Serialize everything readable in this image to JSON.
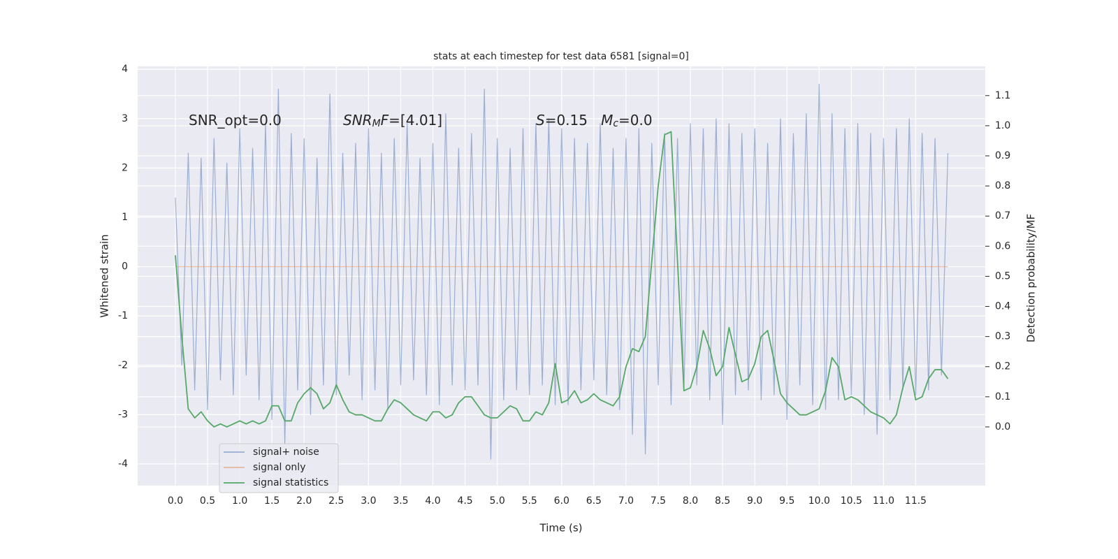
{
  "chart_data": {
    "type": "line",
    "title": "stats at each timestep for test data 6581 [signal=0]",
    "xlabel": "Time (s)",
    "ylabel": "Whitened strain",
    "y2label": "Detection probability/MF",
    "xlim": [
      -0.586,
      12.58
    ],
    "ylim": [
      -4.44,
      4.06
    ],
    "y2lim": [
      -0.195,
      1.197
    ],
    "xticks": [
      {
        "value": 0,
        "label": "0.0"
      },
      {
        "value": 0.5,
        "label": "0.5"
      },
      {
        "value": 1,
        "label": "1.0"
      },
      {
        "value": 1.5,
        "label": "1.5"
      },
      {
        "value": 2,
        "label": "2.0"
      },
      {
        "value": 2.5,
        "label": "2.5"
      },
      {
        "value": 3,
        "label": "3.0"
      },
      {
        "value": 3.5,
        "label": "3.5"
      },
      {
        "value": 4,
        "label": "4.0"
      },
      {
        "value": 4.5,
        "label": "4.5"
      },
      {
        "value": 5,
        "label": "5.0"
      },
      {
        "value": 5.5,
        "label": "5.5"
      },
      {
        "value": 6,
        "label": "6.0"
      },
      {
        "value": 6.5,
        "label": "6.5"
      },
      {
        "value": 7,
        "label": "7.0"
      },
      {
        "value": 7.5,
        "label": "7.5"
      },
      {
        "value": 8,
        "label": "8.0"
      },
      {
        "value": 8.5,
        "label": "8.5"
      },
      {
        "value": 9,
        "label": "9.0"
      },
      {
        "value": 9.5,
        "label": "9.5"
      },
      {
        "value": 10,
        "label": "10.0"
      },
      {
        "value": 10.5,
        "label": "10.5"
      },
      {
        "value": 11,
        "label": "11.0"
      },
      {
        "value": 11.5,
        "label": "11.5"
      }
    ],
    "yticks": [
      -4,
      -3,
      -2,
      -1,
      0,
      1,
      2,
      3,
      4
    ],
    "y2ticks": [
      {
        "value": 0,
        "label": "0.0"
      },
      {
        "value": 0.1,
        "label": "0.1"
      },
      {
        "value": 0.2,
        "label": "0.2"
      },
      {
        "value": 0.3,
        "label": "0.3"
      },
      {
        "value": 0.4,
        "label": "0.4"
      },
      {
        "value": 0.5,
        "label": "0.5"
      },
      {
        "value": 0.6,
        "label": "0.6"
      },
      {
        "value": 0.7,
        "label": "0.7"
      },
      {
        "value": 0.8,
        "label": "0.8"
      },
      {
        "value": 0.9,
        "label": "0.9"
      },
      {
        "value": 1,
        "label": "1.0"
      },
      {
        "value": 1.1,
        "label": "1.1"
      }
    ],
    "grid": true,
    "legend": "lower left",
    "annotations": [
      {
        "parts": [
          {
            "text": "SNR_opt=0.0"
          }
        ]
      },
      {
        "parts": [
          {
            "text": "SNR",
            "italic": true
          },
          {
            "text": "M",
            "italic": true,
            "sub": true
          },
          {
            "text": "F",
            "italic": true
          },
          {
            "text": "=[4.01]"
          }
        ]
      },
      {
        "parts": [
          {
            "text": "S",
            "italic": true
          },
          {
            "text": "=0.15   "
          },
          {
            "text": "M",
            "italic": true
          },
          {
            "text": "c",
            "italic": true,
            "sub": true
          },
          {
            "text": "=0.0"
          }
        ]
      }
    ],
    "x": [
      0,
      0.1,
      0.2,
      0.3,
      0.4,
      0.5,
      0.6,
      0.7,
      0.8,
      0.9,
      1,
      1.1,
      1.2,
      1.3,
      1.4,
      1.5,
      1.6,
      1.7,
      1.8,
      1.9,
      2,
      2.1,
      2.2,
      2.3,
      2.4,
      2.5,
      2.6,
      2.7,
      2.8,
      2.9,
      3,
      3.1,
      3.2,
      3.3,
      3.4,
      3.5,
      3.6,
      3.7,
      3.8,
      3.9,
      4,
      4.1,
      4.2,
      4.3,
      4.4,
      4.5,
      4.6,
      4.7,
      4.8,
      4.9,
      5,
      5.1,
      5.2,
      5.3,
      5.4,
      5.5,
      5.6,
      5.7,
      5.8,
      5.9,
      6,
      6.1,
      6.2,
      6.3,
      6.4,
      6.5,
      6.6,
      6.7,
      6.8,
      6.9,
      7,
      7.1,
      7.2,
      7.3,
      7.4,
      7.5,
      7.6,
      7.7,
      7.8,
      7.9,
      8,
      8.1,
      8.2,
      8.3,
      8.4,
      8.5,
      8.6,
      8.7,
      8.8,
      8.9,
      9,
      9.1,
      9.2,
      9.3,
      9.4,
      9.5,
      9.6,
      9.7,
      9.8,
      9.9,
      10,
      10.1,
      10.2,
      10.3,
      10.4,
      10.5,
      10.6,
      10.7,
      10.8,
      10.9,
      11,
      11.1,
      11.2,
      11.3,
      11.4,
      11.5,
      11.6,
      11.7,
      11.8,
      11.9,
      12
    ],
    "series": [
      {
        "name": "signal+ noise",
        "color": "#4c72b0",
        "opacity": 0.5,
        "values": [
          1.4,
          -2.0,
          2.3,
          -2.5,
          2.2,
          -2.9,
          2.6,
          -2.3,
          2.1,
          -2.6,
          2.8,
          -2.2,
          2.4,
          -2.7,
          2.9,
          -3.1,
          3.6,
          -3.6,
          2.7,
          -2.5,
          2.6,
          -3.0,
          2.2,
          -2.4,
          3.5,
          -2.6,
          2.3,
          -2.2,
          2.5,
          -2.7,
          2.8,
          -2.5,
          2.3,
          -2.9,
          2.6,
          -2.4,
          2.9,
          -2.3,
          2.2,
          -2.6,
          2.5,
          -2.8,
          3.1,
          -2.4,
          2.4,
          -2.5,
          2.7,
          -2.4,
          3.6,
          -3.9,
          2.6,
          -2.7,
          2.4,
          -2.5,
          2.8,
          -2.6,
          2.9,
          -2.4,
          3.0,
          -2.8,
          2.8,
          -2.8,
          2.6,
          -2.5,
          2.5,
          -2.3,
          2.9,
          -2.6,
          2.4,
          -2.9,
          2.6,
          -3.4,
          2.8,
          -3.8,
          2.5,
          -2.4,
          2.7,
          -2.8,
          2.6,
          -2.5,
          2.9,
          -2.4,
          2.8,
          -2.7,
          3.0,
          -3.2,
          2.9,
          -2.6,
          2.7,
          -2.5,
          2.8,
          -2.7,
          2.5,
          -2.6,
          3.0,
          -3.1,
          2.7,
          -2.4,
          3.1,
          -2.8,
          3.7,
          -2.9,
          3.1,
          -2.7,
          2.8,
          -2.6,
          2.9,
          -3.0,
          2.7,
          -3.4,
          2.6,
          -2.7,
          2.8,
          -2.5,
          3.0,
          -2.6,
          2.7,
          -2.5,
          2.6,
          -2.2,
          2.3
        ]
      },
      {
        "name": "signal only",
        "color": "#dd8452",
        "opacity": 0.5,
        "x": [
          0,
          12
        ],
        "values": [
          0,
          0
        ]
      },
      {
        "name": "signal statistics",
        "color": "#55a868",
        "opacity": 1,
        "axis": "y2",
        "values": [
          0.57,
          0.3,
          0.06,
          0.03,
          0.05,
          0.02,
          0.0,
          0.01,
          0.0,
          0.01,
          0.02,
          0.01,
          0.02,
          0.01,
          0.02,
          0.07,
          0.07,
          0.02,
          0.02,
          0.08,
          0.11,
          0.13,
          0.11,
          0.06,
          0.08,
          0.14,
          0.09,
          0.05,
          0.04,
          0.04,
          0.03,
          0.02,
          0.02,
          0.06,
          0.09,
          0.08,
          0.06,
          0.04,
          0.03,
          0.02,
          0.05,
          0.05,
          0.03,
          0.04,
          0.08,
          0.1,
          0.1,
          0.07,
          0.04,
          0.03,
          0.03,
          0.05,
          0.07,
          0.06,
          0.02,
          0.02,
          0.05,
          0.04,
          0.08,
          0.21,
          0.08,
          0.09,
          0.12,
          0.08,
          0.09,
          0.11,
          0.09,
          0.08,
          0.07,
          0.1,
          0.2,
          0.26,
          0.25,
          0.3,
          0.55,
          0.8,
          0.97,
          0.98,
          0.55,
          0.12,
          0.13,
          0.2,
          0.32,
          0.26,
          0.17,
          0.2,
          0.33,
          0.24,
          0.15,
          0.16,
          0.21,
          0.3,
          0.32,
          0.22,
          0.11,
          0.08,
          0.06,
          0.04,
          0.04,
          0.05,
          0.06,
          0.12,
          0.23,
          0.2,
          0.09,
          0.1,
          0.09,
          0.07,
          0.05,
          0.04,
          0.03,
          0.01,
          0.04,
          0.13,
          0.2,
          0.09,
          0.1,
          0.16,
          0.19,
          0.19,
          0.16
        ]
      }
    ]
  }
}
